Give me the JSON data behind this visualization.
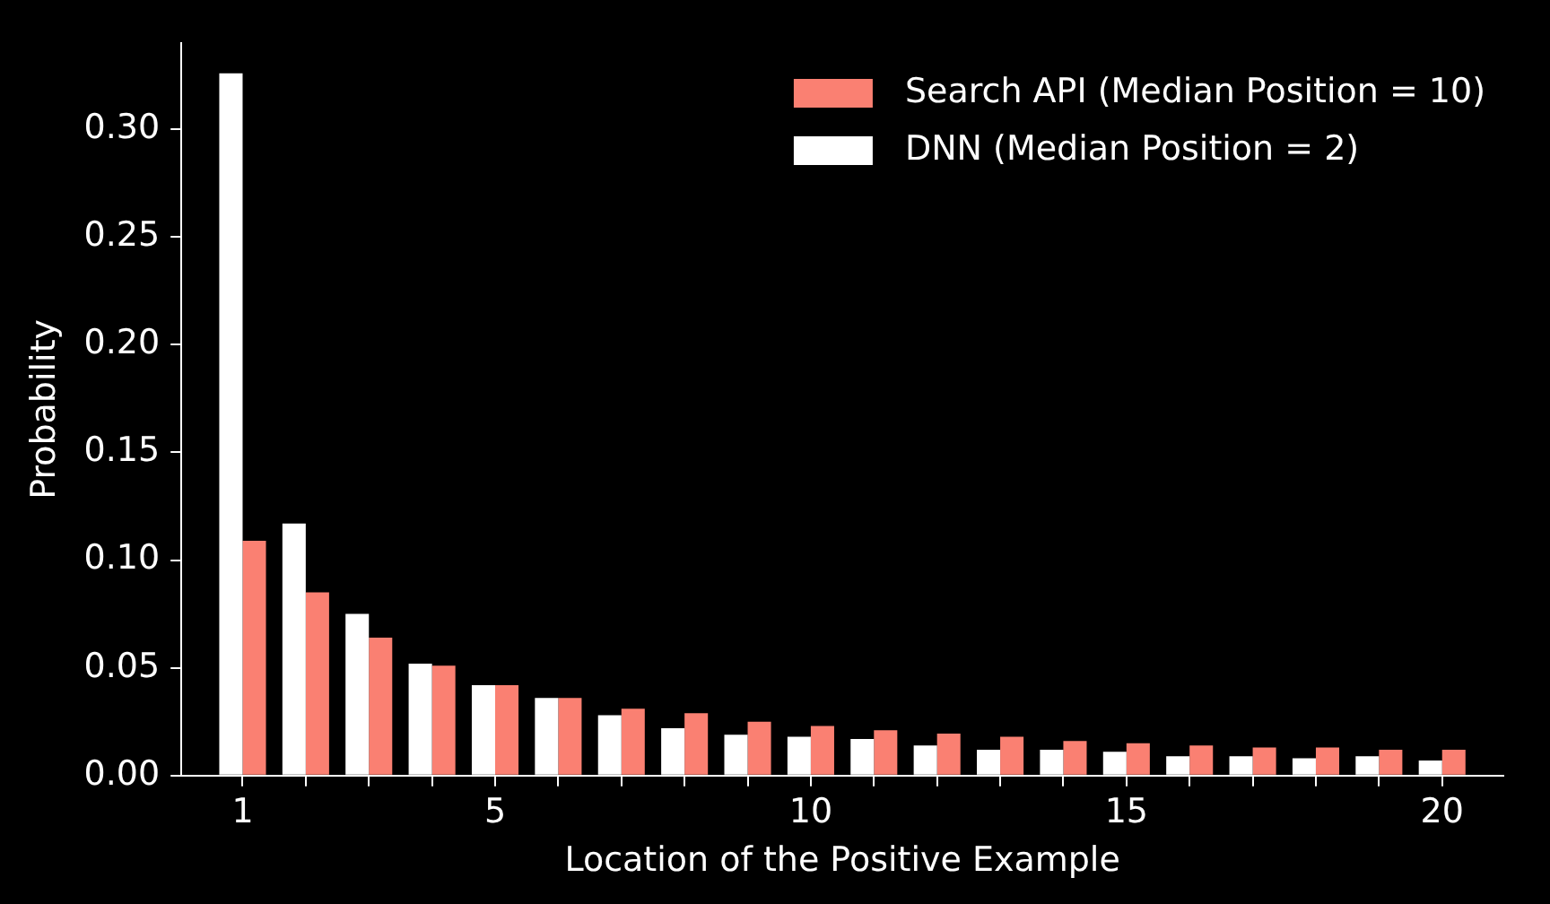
{
  "chart_data": {
    "type": "bar",
    "xlabel": "Location of the Positive Example",
    "ylabel": "Probability",
    "x": [
      1,
      2,
      3,
      4,
      5,
      6,
      7,
      8,
      9,
      10,
      11,
      12,
      13,
      14,
      15,
      16,
      17,
      18,
      19,
      20
    ],
    "series": [
      {
        "name": "DNN (Median Position = 2)",
        "color": "#ffffff",
        "values": [
          0.326,
          0.117,
          0.075,
          0.052,
          0.042,
          0.036,
          0.028,
          0.022,
          0.019,
          0.018,
          0.017,
          0.014,
          0.012,
          0.012,
          0.011,
          0.009,
          0.009,
          0.008,
          0.009,
          0.007
        ]
      },
      {
        "name": "Search API (Median Position = 10)",
        "color": "#fa8072",
        "values": [
          0.109,
          0.085,
          0.064,
          0.051,
          0.042,
          0.036,
          0.031,
          0.029,
          0.025,
          0.023,
          0.021,
          0.0195,
          0.018,
          0.016,
          0.015,
          0.014,
          0.013,
          0.013,
          0.012,
          0.012
        ]
      }
    ],
    "xlim": [
      0.03,
      20.97
    ],
    "xticks": [
      1,
      {
        "value": 2,
        "label": null
      },
      {
        "value": 3,
        "label": null
      },
      {
        "value": 4,
        "label": null
      },
      5,
      {
        "value": 6,
        "label": null
      },
      {
        "value": 7,
        "label": null
      },
      {
        "value": 8,
        "label": null
      },
      {
        "value": 9,
        "label": null
      },
      10,
      {
        "value": 11,
        "label": null
      },
      {
        "value": 12,
        "label": null
      },
      {
        "value": 13,
        "label": null
      },
      {
        "value": 14,
        "label": null
      },
      15,
      {
        "value": 16,
        "label": null
      },
      {
        "value": 17,
        "label": null
      },
      {
        "value": 18,
        "label": null
      },
      {
        "value": 19,
        "label": null
      },
      20
    ],
    "ylim": [
      0,
      0.34
    ],
    "yticks": [
      {
        "value": 0,
        "label": "0.00"
      },
      {
        "value": 0.05,
        "label": "0.05"
      },
      {
        "value": 0.1,
        "label": "0.10"
      },
      {
        "value": 0.15,
        "label": "0.15"
      },
      {
        "value": 0.2,
        "label": "0.20"
      },
      {
        "value": 0.25,
        "label": "0.25"
      },
      {
        "value": 0.3,
        "label": "0.30"
      }
    ],
    "grid": false,
    "legend": "top right"
  }
}
